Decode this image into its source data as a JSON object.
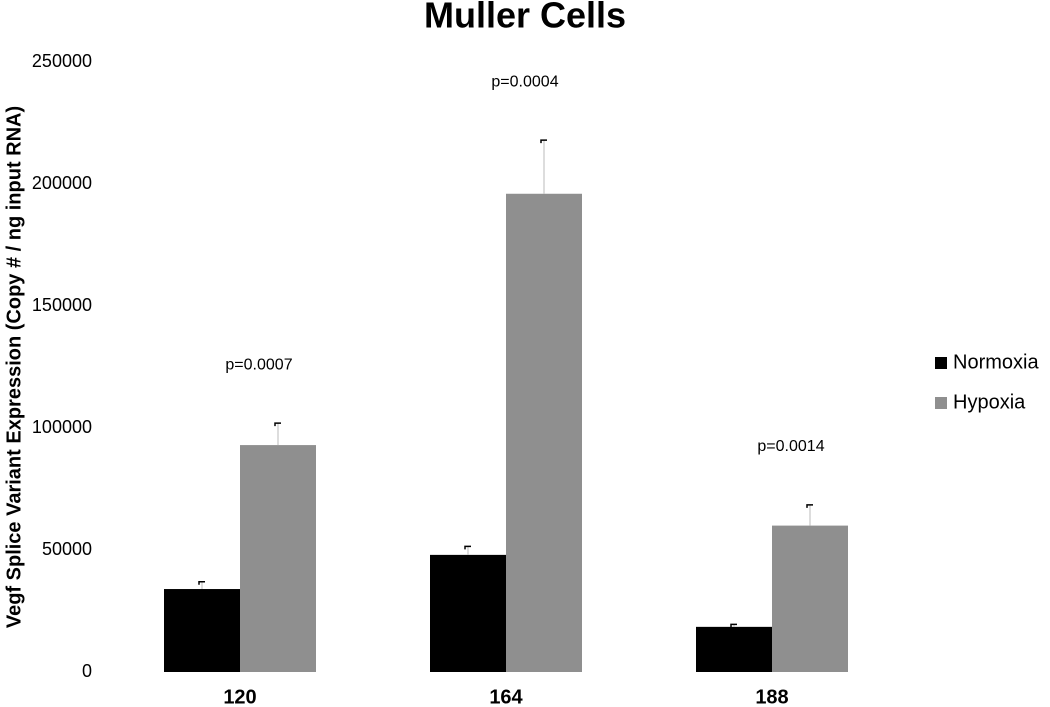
{
  "chart_data": {
    "type": "bar",
    "title": "Muller Cells",
    "y_label": "Vegf Splice Variant Expression (Copy # / ng input RNA)",
    "categories": [
      "120",
      "164",
      "188"
    ],
    "series": [
      {
        "name": "Normoxia",
        "color": "#000000",
        "values": [
          34000,
          48000,
          18500
        ],
        "errors": [
          3000,
          3500,
          1000
        ]
      },
      {
        "name": "Hypoxia",
        "color": "#8f8f8f",
        "values": [
          93000,
          196000,
          60000
        ],
        "errors": [
          9000,
          22000,
          8500
        ]
      }
    ],
    "annotations": [
      "p=0.0007",
      "p=0.0004",
      "p=0.0014"
    ],
    "ylim": [
      0,
      250000
    ],
    "yticks": [
      0,
      50000,
      100000,
      150000,
      200000,
      250000
    ],
    "legend": "right"
  }
}
